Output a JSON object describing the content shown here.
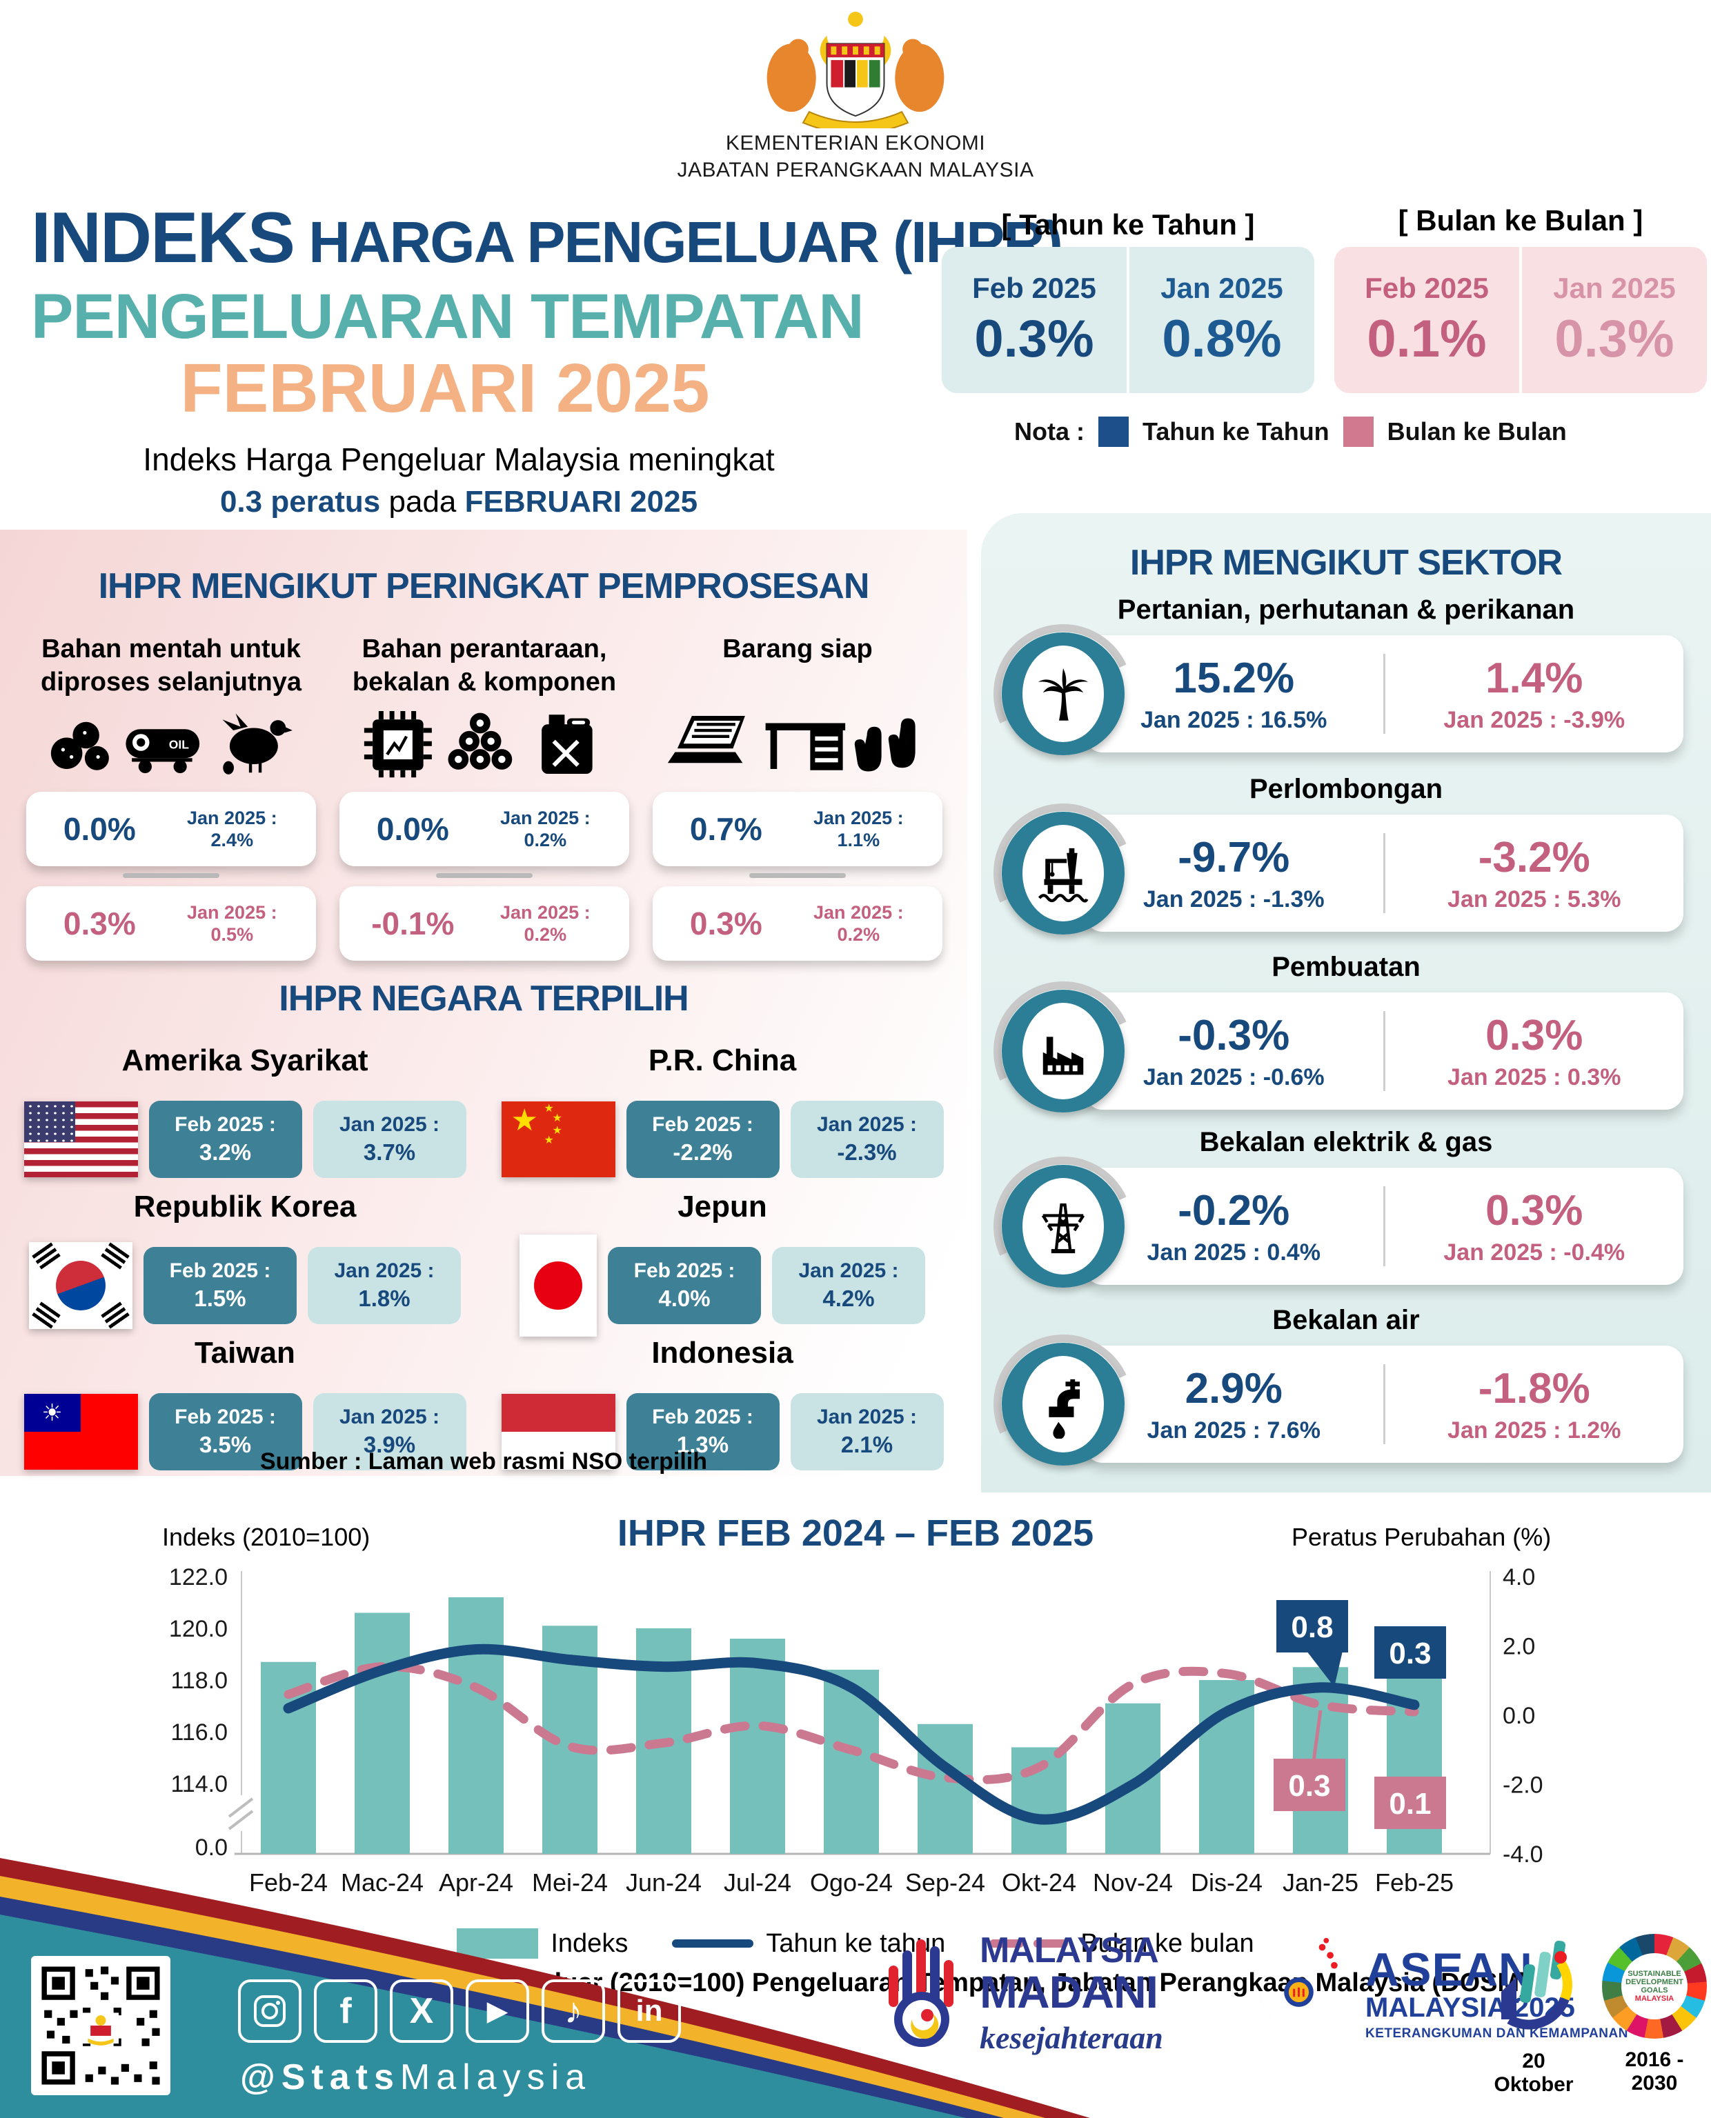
{
  "colors": {
    "navy": "#17497c",
    "navy_line": "#17497c",
    "teal_heading": "#57b0ac",
    "orange": "#f4b183",
    "pink": "#cb7990",
    "bar": "#76c0bc",
    "box_teal": "#3e8096",
    "box_light": "#c9e3e5",
    "panel_pink": "#f5d6d6",
    "panel_teal": "#dcedeb",
    "footer_teal": "#2e8e9e",
    "stripe_red": "#a01d22",
    "stripe_yellow": "#f2b32a",
    "stripe_blue": "#2a3b85"
  },
  "header": {
    "ministry1": "KEMENTERIAN EKONOMI",
    "ministry2": "JABATAN PERANGKAAN MALAYSIA",
    "title_word1": "INDEKS",
    "title_rest": " HARGA PENGELUAR (IHPR)",
    "title_line2": "PENGELUARAN TEMPATAN",
    "title_line3": "FEBRUARI 2025",
    "subtitle_line1": "Indeks Harga Pengeluar Malaysia meningkat",
    "subtitle_bold1": "0.3 peratus",
    "subtitle_mid": " pada ",
    "subtitle_bold2": "FEBRUARI 2025"
  },
  "summary": {
    "yoy_title": "[ Tahun ke Tahun ]",
    "mom_title": "[ Bulan ke Bulan ]",
    "yoy": {
      "feb_label": "Feb 2025",
      "feb_value": "0.3%",
      "jan_label": "Jan 2025",
      "jan_value": "0.8%"
    },
    "mom": {
      "feb_label": "Feb 2025",
      "feb_value": "0.1%",
      "jan_label": "Jan 2025",
      "jan_value": "0.3%"
    },
    "nota_label": "Nota :",
    "legend_yoy": "Tahun ke Tahun",
    "legend_mom": "Bulan ke Bulan"
  },
  "processing": {
    "heading": "IHPR MENGIKUT PERINGKAT PEMPROSESAN",
    "prev_label": "Jan 2025 :",
    "oil_label": "OIL",
    "groups": [
      {
        "name1": "Bahan mentah untuk",
        "name2": "diproses selanjutnya",
        "icons": [
          "ore-rocks-icon",
          "oil-tank-wagon-icon",
          "chicken-icon"
        ],
        "yoy": "0.0%",
        "yoy_prev": "2.4%",
        "mom": "0.3%",
        "mom_prev": "0.5%"
      },
      {
        "name1": "Bahan perantaraan,",
        "name2": "bekalan & komponen",
        "icons": [
          "microchip-icon",
          "logs-icon",
          "jerrycan-icon"
        ],
        "yoy": "0.0%",
        "yoy_prev": "0.2%",
        "mom": "-0.1%",
        "mom_prev": "0.2%"
      },
      {
        "name1": "Barang siap",
        "name2": "",
        "icons": [
          "laptop-icon",
          "desk-icon",
          "gloves-icon"
        ],
        "yoy": "0.7%",
        "yoy_prev": "1.1%",
        "mom": "0.3%",
        "mom_prev": "0.2%"
      }
    ]
  },
  "countries": {
    "heading": "IHPR NEGARA TERPILIH",
    "feb_label": "Feb 2025 :",
    "jan_label": "Jan 2025 :",
    "items": [
      {
        "name": "Amerika Syarikat",
        "flag": "us-flag",
        "feb": "3.2%",
        "jan": "3.7%"
      },
      {
        "name": "P.R. China",
        "flag": "china-flag",
        "feb": "-2.2%",
        "jan": "-2.3%"
      },
      {
        "name": "Republik Korea",
        "flag": "south-korea-flag",
        "feb": "1.5%",
        "jan": "1.8%"
      },
      {
        "name": "Jepun",
        "flag": "japan-flag",
        "feb": "4.0%",
        "jan": "4.2%"
      },
      {
        "name": "Taiwan",
        "flag": "taiwan-flag",
        "feb": "3.5%",
        "jan": "3.9%"
      },
      {
        "name": "Indonesia",
        "flag": "indonesia-flag",
        "feb": "1.3%",
        "jan": "2.1%"
      }
    ],
    "source": "Sumber : Laman web rasmi NSO terpilih"
  },
  "sectors": {
    "heading": "IHPR MENGIKUT SEKTOR",
    "items": [
      {
        "name": "Pertanian, perhutanan & perikanan",
        "icon": "palm-tree-icon",
        "yoy": "15.2%",
        "yoy_prev": "Jan 2025 : 16.5%",
        "mom": "1.4%",
        "mom_prev": "Jan 2025 : -3.9%"
      },
      {
        "name": "Perlombongan",
        "icon": "oil-rig-icon",
        "yoy": "-9.7%",
        "yoy_prev": "Jan 2025 : -1.3%",
        "mom": "-3.2%",
        "mom_prev": "Jan 2025 : 5.3%"
      },
      {
        "name": "Pembuatan",
        "icon": "factory-icon",
        "yoy": "-0.3%",
        "yoy_prev": "Jan 2025 : -0.6%",
        "mom": "0.3%",
        "mom_prev": "Jan 2025 : 0.3%"
      },
      {
        "name": "Bekalan elektrik & gas",
        "icon": "electricity-pylon-icon",
        "yoy": "-0.2%",
        "yoy_prev": "Jan 2025 : 0.4%",
        "mom": "0.3%",
        "mom_prev": "Jan 2025 : -0.4%"
      },
      {
        "name": "Bekalan air",
        "icon": "water-tap-icon",
        "yoy": "2.9%",
        "yoy_prev": "Jan 2025 : 7.6%",
        "mom": "-1.8%",
        "mom_prev": "Jan 2025 : 1.2%"
      }
    ]
  },
  "chart_data": {
    "type": "bar+line",
    "title": "IHPR FEB 2024 – FEB 2025",
    "left_axis_label": "Indeks (2010=100)",
    "right_axis_label": "Peratus Perubahan (%)",
    "categories": [
      "Feb-24",
      "Mac-24",
      "Apr-24",
      "Mei-24",
      "Jun-24",
      "Jul-24",
      "Ogo-24",
      "Sep-24",
      "Okt-24",
      "Nov-24",
      "Dis-24",
      "Jan-25",
      "Feb-25"
    ],
    "series": [
      {
        "name": "Indeks",
        "type": "bar",
        "axis": "left",
        "values": [
          118.7,
          120.6,
          121.2,
          120.1,
          120.0,
          119.6,
          118.4,
          116.3,
          115.4,
          117.1,
          118.0,
          118.5,
          119.0
        ]
      },
      {
        "name": "Tahun ke tahun",
        "type": "line",
        "axis": "right",
        "values": [
          0.2,
          1.3,
          1.9,
          1.6,
          1.4,
          1.5,
          0.8,
          -1.5,
          -3.0,
          -2.0,
          0.1,
          0.8,
          0.3
        ]
      },
      {
        "name": "Bulan ke bulan",
        "type": "line-dashed",
        "axis": "right",
        "values": [
          0.6,
          1.4,
          0.8,
          -0.9,
          -0.8,
          -0.3,
          -1.0,
          -1.8,
          -1.5,
          0.9,
          1.2,
          0.3,
          0.1
        ]
      }
    ],
    "left_axis_ticks": [
      122.0,
      120.0,
      118.0,
      116.0,
      114.0,
      0.0
    ],
    "right_axis_ticks": [
      4.0,
      2.0,
      0.0,
      -2.0,
      -4.0
    ],
    "left_axis_range_break": true,
    "grid": false,
    "legend_position": "bottom",
    "legend": [
      "Indeks",
      "Tahun ke tahun",
      "Bulan ke bulan"
    ],
    "annotations": [
      {
        "category": "Jan-25",
        "series": "Tahun ke tahun",
        "label": "0.8"
      },
      {
        "category": "Jan-25",
        "series": "Bulan ke bulan",
        "label": "0.3"
      },
      {
        "category": "Feb-25",
        "series": "Tahun ke tahun",
        "label": "0.3"
      },
      {
        "category": "Feb-25",
        "series": "Bulan ke bulan",
        "label": "0.1"
      }
    ],
    "source": "Sumber : Indeks Harga Pengeluar (2010=100) Pengeluaran Tempatan, Jabatan Perangkaan Malaysia (DOSM)"
  },
  "footer": {
    "handle_bold": "@Stats",
    "handle_rest": "Malaysia",
    "social": [
      "instagram",
      "facebook",
      "x",
      "youtube",
      "tiktok",
      "linkedin"
    ],
    "facebook_glyph": "f",
    "x_glyph": "X",
    "youtube_glyph": "▶",
    "tiktok_glyph": "♪",
    "linkedin_glyph": "in",
    "madani_top": "MALAYSIA",
    "madani_bottom": "MADANI",
    "madani_script": "kesejahteraan",
    "asean_title": "ASEAN",
    "asean_sub": "MALAYSIA 2025",
    "asean_tagline": "KETERANGKUMAN DAN KEMAMPANAN",
    "mystats_caption": "20 Oktober",
    "sdg_caption": "2016 - 2030",
    "sdg_center1": "SUSTAINABLE",
    "sdg_center2": "DEVELOPMENT",
    "sdg_center3": "GOALS",
    "sdg_center4": "MALAYSIA"
  }
}
